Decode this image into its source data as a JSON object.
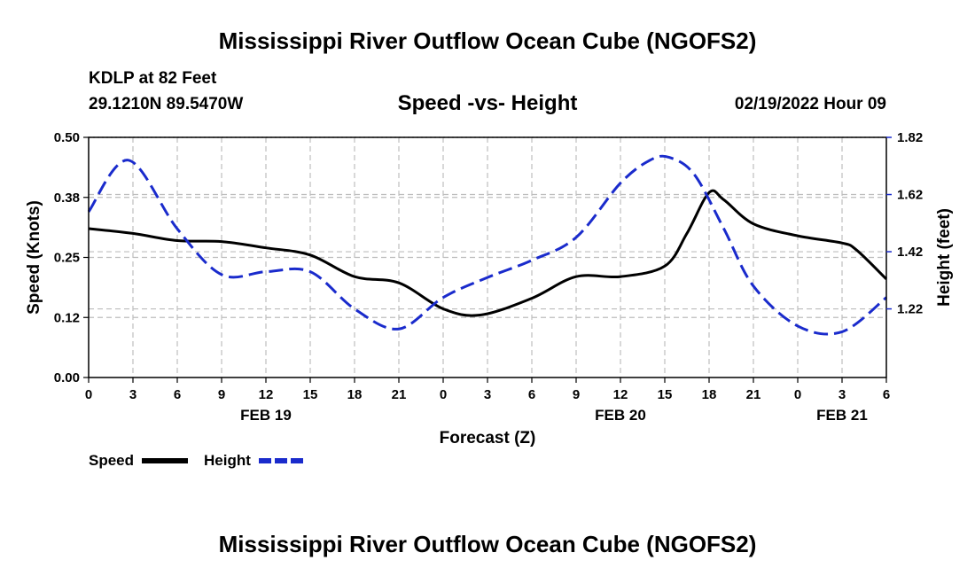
{
  "page": {
    "title_top": "Mississippi River Outflow Ocean Cube (NGOFS2)",
    "title_bottom": "Mississippi River Outflow Ocean Cube (NGOFS2)",
    "station_line": "KDLP at 82 Feet",
    "coords_line": "29.1210N  89.5470W",
    "datetime": "02/19/2022 Hour 09"
  },
  "chart_data": {
    "type": "line",
    "title": "Speed -vs- Height",
    "xlabel": "Forecast (Z)",
    "ylabel": "Speed (Knots)",
    "y2label": "Height (feet)",
    "x_range": [
      0,
      54
    ],
    "x_ticks": [
      {
        "x": 0,
        "label": "0"
      },
      {
        "x": 3,
        "label": "3"
      },
      {
        "x": 6,
        "label": "6"
      },
      {
        "x": 9,
        "label": "9"
      },
      {
        "x": 12,
        "label": "12"
      },
      {
        "x": 15,
        "label": "15"
      },
      {
        "x": 18,
        "label": "18"
      },
      {
        "x": 21,
        "label": "21"
      },
      {
        "x": 24,
        "label": "0"
      },
      {
        "x": 27,
        "label": "3"
      },
      {
        "x": 30,
        "label": "6"
      },
      {
        "x": 33,
        "label": "9"
      },
      {
        "x": 36,
        "label": "12"
      },
      {
        "x": 39,
        "label": "15"
      },
      {
        "x": 42,
        "label": "18"
      },
      {
        "x": 45,
        "label": "21"
      },
      {
        "x": 48,
        "label": "0"
      },
      {
        "x": 51,
        "label": "3"
      },
      {
        "x": 54,
        "label": "6"
      }
    ],
    "date_labels": [
      {
        "x": 12,
        "label": "FEB 19"
      },
      {
        "x": 36,
        "label": "FEB 20"
      },
      {
        "x": 51,
        "label": "FEB 21"
      }
    ],
    "ylim": [
      0,
      0.5
    ],
    "y_ticks": [
      {
        "v": 0.0,
        "label": "0.00"
      },
      {
        "v": 0.125,
        "label": "0.12"
      },
      {
        "v": 0.25,
        "label": "0.25"
      },
      {
        "v": 0.375,
        "label": "0.38"
      },
      {
        "v": 0.5,
        "label": "0.50"
      }
    ],
    "y2lim": [
      0.98,
      1.82
    ],
    "y2_ticks": [
      {
        "v": 1.22,
        "label": "1.22"
      },
      {
        "v": 1.42,
        "label": "1.42"
      },
      {
        "v": 1.62,
        "label": "1.62"
      },
      {
        "v": 1.82,
        "label": "1.82"
      }
    ],
    "grid": true,
    "series": [
      {
        "name": "Speed",
        "axis": "left",
        "color": "#000000",
        "dash": "solid",
        "x": [
          0,
          3,
          6,
          9,
          12,
          15,
          18,
          21,
          24,
          26.5,
          30,
          33,
          36,
          39,
          40.5,
          42,
          43,
          45,
          48,
          51,
          52,
          54
        ],
        "values": [
          0.31,
          0.3,
          0.285,
          0.283,
          0.27,
          0.255,
          0.21,
          0.197,
          0.143,
          0.13,
          0.165,
          0.21,
          0.21,
          0.232,
          0.3,
          0.385,
          0.37,
          0.32,
          0.295,
          0.28,
          0.265,
          0.205
        ]
      },
      {
        "name": "Height",
        "axis": "right",
        "color": "#1a2bcc",
        "dash": "dashed",
        "x": [
          0,
          2.7,
          6,
          9,
          12,
          15,
          18,
          21,
          24,
          27,
          30,
          33,
          36,
          38,
          39.3,
          41,
          43,
          45,
          48,
          51,
          54
        ],
        "values": [
          1.56,
          1.74,
          1.5,
          1.34,
          1.35,
          1.35,
          1.22,
          1.15,
          1.26,
          1.33,
          1.39,
          1.47,
          1.66,
          1.74,
          1.75,
          1.69,
          1.5,
          1.3,
          1.16,
          1.14,
          1.26
        ]
      }
    ],
    "legend": {
      "position": "bottom-left",
      "items": [
        {
          "label": "Speed",
          "color": "#000000",
          "dash": "solid"
        },
        {
          "label": "Height",
          "color": "#1a2bcc",
          "dash": "dashed"
        }
      ]
    }
  }
}
